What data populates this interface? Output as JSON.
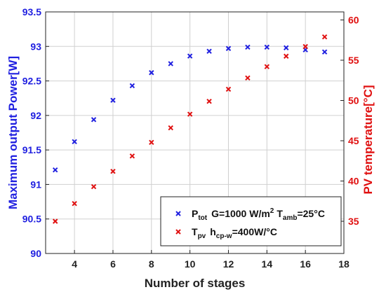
{
  "colors": {
    "series_power": "#2020e0",
    "series_temp": "#e01010",
    "axis": "#222222",
    "grid": "#d0d0d0"
  },
  "chart_data": {
    "type": "scatter",
    "xlabel": "Number of stages",
    "ylabel_left": "Maximum output Power[W]",
    "ylabel_right": "PV temperature[°C]",
    "xlim": [
      2.5,
      18
    ],
    "xticks": [
      "4",
      "6",
      "8",
      "10",
      "12",
      "14",
      "16",
      "18"
    ],
    "ylim_left": [
      90,
      93.5
    ],
    "yticks_left": [
      "90",
      "90.5",
      "91",
      "91.5",
      "92",
      "92.5",
      "93",
      "93.5"
    ],
    "ylim_right": [
      31,
      61
    ],
    "yticks_right": [
      "35",
      "40",
      "45",
      "50",
      "55",
      "60"
    ],
    "grid": true,
    "legend_position": "bottom-right",
    "series": [
      {
        "axis": "left",
        "marker": "x",
        "color": "#2020e0",
        "legend": {
          "symbol": "P",
          "sub": "tot",
          "text1": "G=1000 W/m",
          "sup": "2",
          "text2": "T",
          "sub2": "amb",
          "text3": "=25°C"
        },
        "x": [
          3,
          4,
          5,
          6,
          7,
          8,
          9,
          10,
          11,
          12,
          13,
          14,
          15,
          16,
          17
        ],
        "y": [
          91.21,
          91.62,
          91.94,
          92.22,
          92.43,
          92.62,
          92.75,
          92.86,
          92.93,
          92.97,
          92.99,
          92.99,
          92.98,
          92.95,
          92.92
        ]
      },
      {
        "axis": "right",
        "marker": "x",
        "color": "#e01010",
        "legend": {
          "symbol": "T",
          "sub": "pv",
          "text1": "h",
          "sub2": "cp-w",
          "text2": "=400W/°C"
        },
        "x": [
          3,
          4,
          5,
          6,
          7,
          8,
          9,
          10,
          11,
          12,
          13,
          14,
          15,
          16,
          17
        ],
        "y": [
          35.0,
          37.2,
          39.3,
          41.2,
          43.1,
          44.8,
          46.6,
          48.3,
          49.9,
          51.4,
          52.8,
          54.2,
          55.5,
          56.7,
          57.9
        ]
      }
    ]
  }
}
